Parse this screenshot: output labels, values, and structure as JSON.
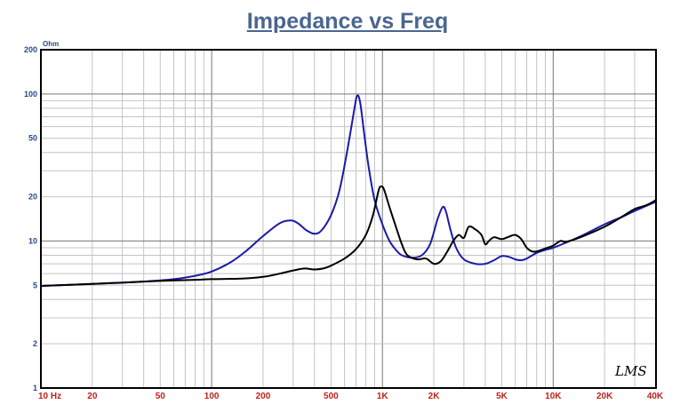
{
  "chart_data": {
    "type": "line",
    "title": "Impedance vs Freq",
    "y_unit": "Ohm",
    "x_scale": "log",
    "y_scale": "log",
    "xlim": [
      10,
      40000
    ],
    "ylim": [
      1,
      200
    ],
    "x_ticks": [
      {
        "value": 10,
        "label": "10 Hz"
      },
      {
        "value": 20,
        "label": "20"
      },
      {
        "value": 50,
        "label": "50"
      },
      {
        "value": 100,
        "label": "100"
      },
      {
        "value": 200,
        "label": "200"
      },
      {
        "value": 500,
        "label": "500"
      },
      {
        "value": 1000,
        "label": "1K"
      },
      {
        "value": 2000,
        "label": "2K"
      },
      {
        "value": 5000,
        "label": "5K"
      },
      {
        "value": 10000,
        "label": "10K"
      },
      {
        "value": 20000,
        "label": "20K"
      },
      {
        "value": 40000,
        "label": "40K"
      }
    ],
    "y_ticks": [
      {
        "value": 1,
        "label": "1"
      },
      {
        "value": 2,
        "label": "2"
      },
      {
        "value": 5,
        "label": "5"
      },
      {
        "value": 10,
        "label": "10"
      },
      {
        "value": 20,
        "label": "20"
      },
      {
        "value": 50,
        "label": "50"
      },
      {
        "value": 100,
        "label": "100"
      },
      {
        "value": 200,
        "label": "200"
      }
    ],
    "grid": true,
    "series": [
      {
        "color": "#1a1aa8",
        "points": [
          [
            10,
            4.95
          ],
          [
            20,
            5.1
          ],
          [
            40,
            5.3
          ],
          [
            60,
            5.5
          ],
          [
            80,
            5.8
          ],
          [
            100,
            6.2
          ],
          [
            130,
            7.2
          ],
          [
            160,
            8.6
          ],
          [
            200,
            10.8
          ],
          [
            250,
            13.2
          ],
          [
            290,
            13.8
          ],
          [
            320,
            13.2
          ],
          [
            360,
            11.8
          ],
          [
            400,
            11.2
          ],
          [
            440,
            11.8
          ],
          [
            500,
            15
          ],
          [
            560,
            22
          ],
          [
            620,
            40
          ],
          [
            680,
            75
          ],
          [
            710,
            97
          ],
          [
            740,
            88
          ],
          [
            780,
            55
          ],
          [
            830,
            32
          ],
          [
            900,
            19
          ],
          [
            1000,
            13
          ],
          [
            1100,
            10
          ],
          [
            1200,
            8.7
          ],
          [
            1300,
            8
          ],
          [
            1500,
            7.7
          ],
          [
            1700,
            8
          ],
          [
            1900,
            9.5
          ],
          [
            2100,
            14
          ],
          [
            2250,
            17
          ],
          [
            2350,
            16
          ],
          [
            2500,
            12
          ],
          [
            2700,
            9
          ],
          [
            3000,
            7.5
          ],
          [
            3500,
            7
          ],
          [
            4000,
            7
          ],
          [
            4500,
            7.4
          ],
          [
            5000,
            7.9
          ],
          [
            5500,
            7.8
          ],
          [
            6000,
            7.5
          ],
          [
            6500,
            7.4
          ],
          [
            7000,
            7.6
          ],
          [
            8000,
            8.3
          ],
          [
            9000,
            8.7
          ],
          [
            10000,
            9
          ],
          [
            12000,
            9.8
          ],
          [
            15000,
            11
          ],
          [
            20000,
            13
          ],
          [
            25000,
            14.5
          ],
          [
            30000,
            16
          ],
          [
            40000,
            18.5
          ]
        ]
      },
      {
        "color": "#000000",
        "points": [
          [
            10,
            4.95
          ],
          [
            20,
            5.1
          ],
          [
            40,
            5.3
          ],
          [
            80,
            5.45
          ],
          [
            100,
            5.5
          ],
          [
            150,
            5.55
          ],
          [
            200,
            5.7
          ],
          [
            250,
            6
          ],
          [
            300,
            6.3
          ],
          [
            350,
            6.5
          ],
          [
            400,
            6.4
          ],
          [
            450,
            6.5
          ],
          [
            500,
            6.8
          ],
          [
            600,
            7.6
          ],
          [
            700,
            8.8
          ],
          [
            800,
            11
          ],
          [
            880,
            15
          ],
          [
            950,
            22
          ],
          [
            980,
            23.5
          ],
          [
            1020,
            22.5
          ],
          [
            1100,
            17
          ],
          [
            1200,
            12.5
          ],
          [
            1300,
            9.5
          ],
          [
            1400,
            8
          ],
          [
            1600,
            7.5
          ],
          [
            1800,
            7.6
          ],
          [
            2000,
            7
          ],
          [
            2200,
            7.3
          ],
          [
            2400,
            8.5
          ],
          [
            2600,
            10
          ],
          [
            2800,
            11
          ],
          [
            3000,
            10.5
          ],
          [
            3200,
            12.5
          ],
          [
            3500,
            12
          ],
          [
            3800,
            11
          ],
          [
            4000,
            9.5
          ],
          [
            4200,
            10
          ],
          [
            4500,
            10.6
          ],
          [
            5000,
            10.3
          ],
          [
            5500,
            10.7
          ],
          [
            6000,
            11
          ],
          [
            6500,
            10.3
          ],
          [
            7000,
            9
          ],
          [
            7500,
            8.5
          ],
          [
            8000,
            8.5
          ],
          [
            9000,
            8.9
          ],
          [
            10000,
            9.3
          ],
          [
            11000,
            10
          ],
          [
            12000,
            9.9
          ],
          [
            15000,
            10.8
          ],
          [
            20000,
            12.5
          ],
          [
            25000,
            14.5
          ],
          [
            30000,
            16.5
          ],
          [
            35000,
            17.5
          ],
          [
            40000,
            19
          ]
        ]
      }
    ]
  }
}
